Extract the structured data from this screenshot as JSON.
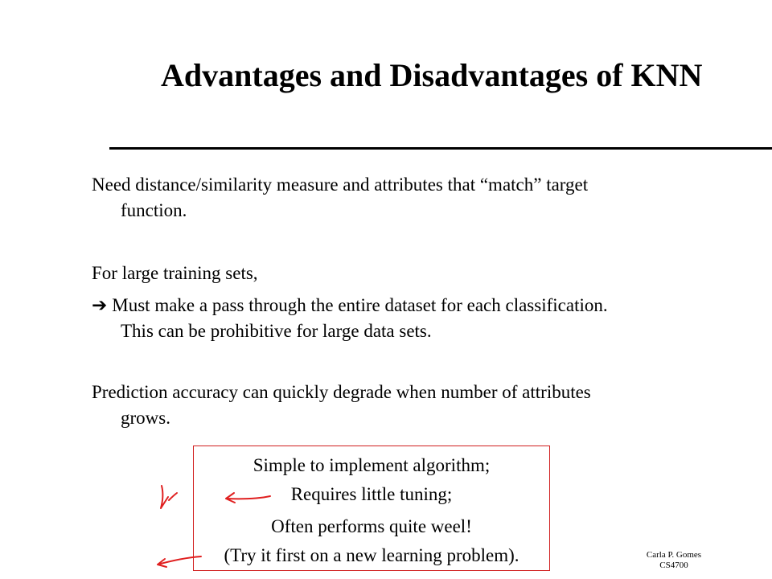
{
  "slide": {
    "title": "Advantages and Disadvantages of KNN",
    "paragraphs": [
      {
        "line1": "Need distance/similarity measure and attributes that “match” target",
        "line2": "function."
      },
      {
        "line1": "For large training sets,"
      },
      {
        "arrow": "➔",
        "line1": "Must make a pass through the entire dataset for each classification.",
        "line2": "This can be prohibitive for large data sets."
      },
      {
        "line1": "Prediction accuracy can quickly degrade when number of attributes",
        "line2": "grows."
      }
    ],
    "box": {
      "border_color": "#d11e1e",
      "lines": [
        "Simple to implement algorithm;",
        "Requires little tuning;",
        "Often performs quite weel!",
        "(Try it first on a new learning problem)."
      ]
    },
    "annotation_color": "#e02020",
    "footer": {
      "author": "Carla P. Gomes",
      "course": "CS4700"
    }
  }
}
